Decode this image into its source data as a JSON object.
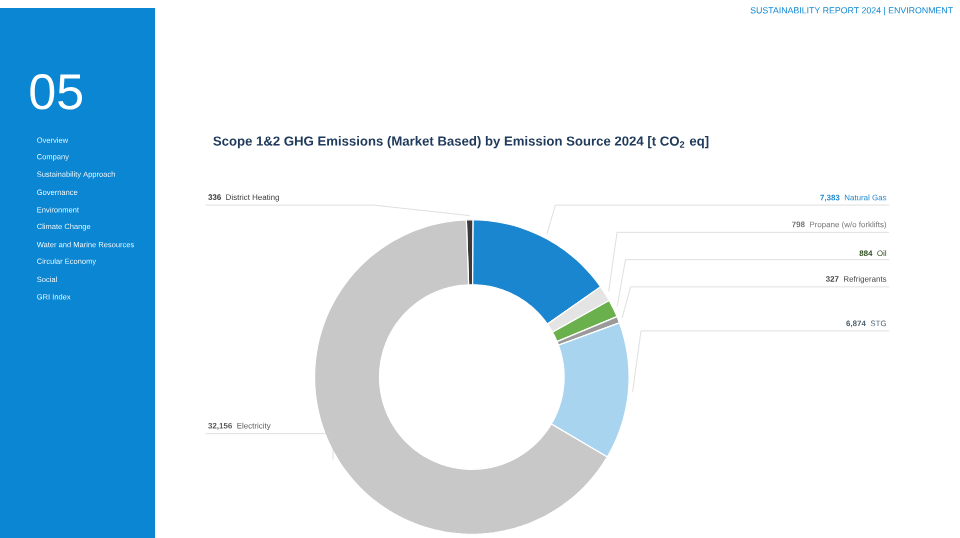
{
  "chart_data": {
    "type": "donut",
    "title": "Scope 1&2 GHG Emissions (Market Based) by Emission Source 2024 [t CO$_{2}$ eq]",
    "categories": [
      "District Heating",
      "Natural Gas",
      "Propane (w/o forklifts)",
      "Oil",
      "Refrigerants",
      "STG",
      "Electricity"
    ],
    "values": [
      336,
      7383,
      798,
      884,
      327,
      6874,
      32156
    ],
    "value_labels": [
      "336",
      "7,383",
      "798",
      "884",
      "327",
      "6,874",
      "32,156"
    ],
    "colors": [
      "#3a3a3a",
      "#1a86d0",
      "#e4e4e4",
      "#6ab04c",
      "#9a9a9a",
      "#a8d4f0",
      "#c8c8c8"
    ],
    "annotations": [
      "SUSTAINABILITY REPORT 2024 | ENVIRONMENT",
      "05",
      "Overview",
      "Company",
      "Sustainability Approach",
      "Governance",
      "Environment",
      "Climate Change",
      "Water and Marine Resources",
      "Circular Economy",
      "Social",
      "GRI Index"
    ]
  }
}
